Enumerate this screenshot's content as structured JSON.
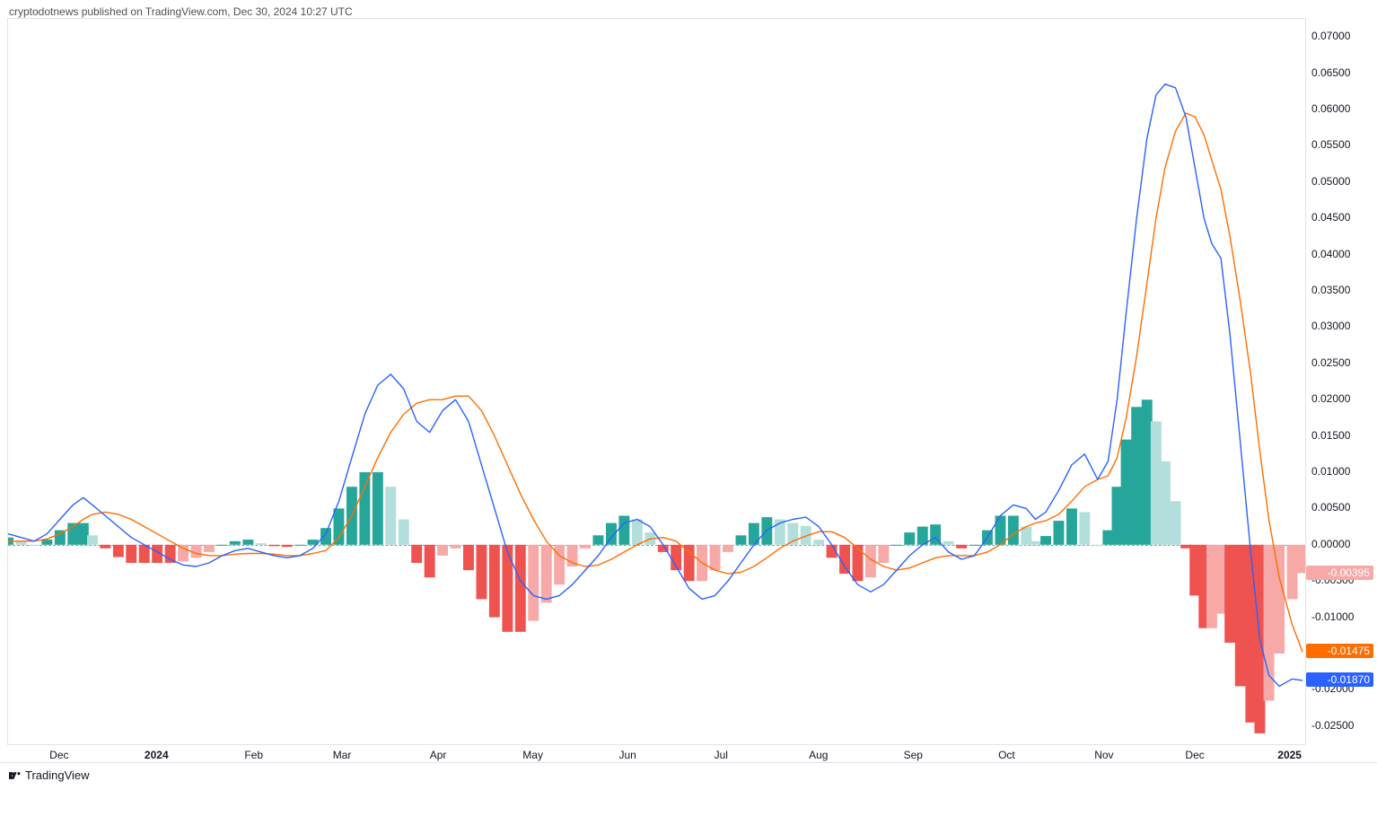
{
  "attribution": "cryptodotnews published on TradingView.com, Dec 30, 2024 10:27 UTC",
  "footer_label": "TradingView",
  "chart": {
    "type": "macd",
    "background_color": "#ffffff",
    "grid_color": "#e0e3eb",
    "zero_line_color": "#9598a1",
    "axis_font_size": 12,
    "axis_font_color": "#131722",
    "ylim": [
      -0.0275,
      0.0725
    ],
    "yticks": [
      0.07,
      0.065,
      0.06,
      0.055,
      0.05,
      0.045,
      0.04,
      0.035,
      0.03,
      0.025,
      0.02,
      0.015,
      0.01,
      0.005,
      0.0,
      -0.005,
      -0.01,
      -0.015,
      -0.02,
      -0.025
    ],
    "ytick_format": "0.00000",
    "current_values": {
      "histogram": {
        "value": -0.00395,
        "color": "#f7a9a7"
      },
      "signal": {
        "value": -0.01475,
        "color": "#ff6d00"
      },
      "macd": {
        "value": -0.0187,
        "color": "#2962ff"
      }
    },
    "xticks": [
      {
        "label": "Dec",
        "pos": 0.04,
        "bold": false
      },
      {
        "label": "2024",
        "pos": 0.115,
        "bold": true
      },
      {
        "label": "Feb",
        "pos": 0.19,
        "bold": false
      },
      {
        "label": "Mar",
        "pos": 0.258,
        "bold": false
      },
      {
        "label": "Apr",
        "pos": 0.332,
        "bold": false
      },
      {
        "label": "May",
        "pos": 0.405,
        "bold": false
      },
      {
        "label": "Jun",
        "pos": 0.478,
        "bold": false
      },
      {
        "label": "Jul",
        "pos": 0.55,
        "bold": false
      },
      {
        "label": "Aug",
        "pos": 0.625,
        "bold": false
      },
      {
        "label": "Sep",
        "pos": 0.698,
        "bold": false
      },
      {
        "label": "Oct",
        "pos": 0.77,
        "bold": false
      },
      {
        "label": "Nov",
        "pos": 0.845,
        "bold": false
      },
      {
        "label": "Dec",
        "pos": 0.915,
        "bold": false
      },
      {
        "label": "2025",
        "pos": 0.988,
        "bold": true
      }
    ],
    "macd_line": {
      "color": "#2962ff",
      "width": 1.4,
      "points": [
        [
          0.0,
          0.0015
        ],
        [
          0.01,
          0.001
        ],
        [
          0.02,
          0.0005
        ],
        [
          0.03,
          0.0015
        ],
        [
          0.04,
          0.0035
        ],
        [
          0.05,
          0.0055
        ],
        [
          0.058,
          0.0065
        ],
        [
          0.065,
          0.0055
        ],
        [
          0.075,
          0.004
        ],
        [
          0.085,
          0.0025
        ],
        [
          0.095,
          0.001
        ],
        [
          0.105,
          0.0
        ],
        [
          0.115,
          -0.001
        ],
        [
          0.125,
          -0.002
        ],
        [
          0.135,
          -0.0028
        ],
        [
          0.145,
          -0.003
        ],
        [
          0.155,
          -0.0025
        ],
        [
          0.165,
          -0.0015
        ],
        [
          0.175,
          -0.0008
        ],
        [
          0.185,
          -0.0005
        ],
        [
          0.195,
          -0.001
        ],
        [
          0.205,
          -0.0015
        ],
        [
          0.215,
          -0.0018
        ],
        [
          0.225,
          -0.0015
        ],
        [
          0.235,
          -0.0005
        ],
        [
          0.245,
          0.0015
        ],
        [
          0.255,
          0.006
        ],
        [
          0.265,
          0.012
        ],
        [
          0.275,
          0.018
        ],
        [
          0.285,
          0.022
        ],
        [
          0.295,
          0.0235
        ],
        [
          0.305,
          0.0215
        ],
        [
          0.315,
          0.017
        ],
        [
          0.325,
          0.0155
        ],
        [
          0.335,
          0.0185
        ],
        [
          0.345,
          0.02
        ],
        [
          0.355,
          0.017
        ],
        [
          0.365,
          0.011
        ],
        [
          0.375,
          0.005
        ],
        [
          0.385,
          -0.001
        ],
        [
          0.395,
          -0.005
        ],
        [
          0.405,
          -0.007
        ],
        [
          0.415,
          -0.0075
        ],
        [
          0.425,
          -0.007
        ],
        [
          0.435,
          -0.0055
        ],
        [
          0.445,
          -0.0035
        ],
        [
          0.455,
          -0.0015
        ],
        [
          0.465,
          0.001
        ],
        [
          0.475,
          0.003
        ],
        [
          0.485,
          0.0035
        ],
        [
          0.495,
          0.0025
        ],
        [
          0.505,
          0.0
        ],
        [
          0.515,
          -0.003
        ],
        [
          0.525,
          -0.006
        ],
        [
          0.535,
          -0.0075
        ],
        [
          0.545,
          -0.007
        ],
        [
          0.555,
          -0.005
        ],
        [
          0.565,
          -0.0025
        ],
        [
          0.575,
          0.0
        ],
        [
          0.585,
          0.002
        ],
        [
          0.595,
          0.003
        ],
        [
          0.605,
          0.0035
        ],
        [
          0.615,
          0.0038
        ],
        [
          0.625,
          0.0025
        ],
        [
          0.635,
          0.0
        ],
        [
          0.645,
          -0.003
        ],
        [
          0.655,
          -0.0055
        ],
        [
          0.665,
          -0.0065
        ],
        [
          0.675,
          -0.0055
        ],
        [
          0.685,
          -0.0035
        ],
        [
          0.695,
          -0.0015
        ],
        [
          0.705,
          0.0
        ],
        [
          0.715,
          0.001
        ],
        [
          0.725,
          -0.001
        ],
        [
          0.735,
          -0.002
        ],
        [
          0.745,
          -0.0015
        ],
        [
          0.755,
          0.001
        ],
        [
          0.765,
          0.004
        ],
        [
          0.775,
          0.0055
        ],
        [
          0.785,
          0.005
        ],
        [
          0.792,
          0.0035
        ],
        [
          0.8,
          0.0045
        ],
        [
          0.81,
          0.0075
        ],
        [
          0.82,
          0.011
        ],
        [
          0.83,
          0.0125
        ],
        [
          0.84,
          0.009
        ],
        [
          0.848,
          0.0115
        ],
        [
          0.855,
          0.02
        ],
        [
          0.862,
          0.032
        ],
        [
          0.87,
          0.045
        ],
        [
          0.878,
          0.056
        ],
        [
          0.885,
          0.062
        ],
        [
          0.892,
          0.0635
        ],
        [
          0.9,
          0.063
        ],
        [
          0.908,
          0.059
        ],
        [
          0.915,
          0.052
        ],
        [
          0.922,
          0.045
        ],
        [
          0.928,
          0.0415
        ],
        [
          0.935,
          0.0395
        ],
        [
          0.942,
          0.029
        ],
        [
          0.95,
          0.014
        ],
        [
          0.958,
          -0.001
        ],
        [
          0.965,
          -0.013
        ],
        [
          0.972,
          -0.018
        ],
        [
          0.98,
          -0.0195
        ],
        [
          0.99,
          -0.0185
        ],
        [
          0.998,
          -0.0187
        ]
      ]
    },
    "signal_line": {
      "color": "#ff6d00",
      "width": 1.4,
      "points": [
        [
          0.0,
          0.0005
        ],
        [
          0.01,
          0.0005
        ],
        [
          0.02,
          0.0005
        ],
        [
          0.03,
          0.0008
        ],
        [
          0.04,
          0.0015
        ],
        [
          0.05,
          0.0025
        ],
        [
          0.058,
          0.0035
        ],
        [
          0.065,
          0.0042
        ],
        [
          0.075,
          0.0045
        ],
        [
          0.085,
          0.0042
        ],
        [
          0.095,
          0.0035
        ],
        [
          0.105,
          0.0025
        ],
        [
          0.115,
          0.0015
        ],
        [
          0.125,
          0.0005
        ],
        [
          0.135,
          -0.0005
        ],
        [
          0.145,
          -0.0012
        ],
        [
          0.155,
          -0.0015
        ],
        [
          0.165,
          -0.0015
        ],
        [
          0.175,
          -0.0013
        ],
        [
          0.185,
          -0.0012
        ],
        [
          0.195,
          -0.0012
        ],
        [
          0.205,
          -0.0013
        ],
        [
          0.215,
          -0.0015
        ],
        [
          0.225,
          -0.0015
        ],
        [
          0.235,
          -0.0012
        ],
        [
          0.245,
          -0.0008
        ],
        [
          0.255,
          0.001
        ],
        [
          0.265,
          0.004
        ],
        [
          0.275,
          0.008
        ],
        [
          0.285,
          0.012
        ],
        [
          0.295,
          0.0155
        ],
        [
          0.305,
          0.018
        ],
        [
          0.315,
          0.0195
        ],
        [
          0.325,
          0.02
        ],
        [
          0.335,
          0.02
        ],
        [
          0.345,
          0.0205
        ],
        [
          0.355,
          0.0205
        ],
        [
          0.365,
          0.0185
        ],
        [
          0.375,
          0.015
        ],
        [
          0.385,
          0.011
        ],
        [
          0.395,
          0.007
        ],
        [
          0.405,
          0.0035
        ],
        [
          0.415,
          0.0005
        ],
        [
          0.425,
          -0.0015
        ],
        [
          0.435,
          -0.0025
        ],
        [
          0.445,
          -0.003
        ],
        [
          0.455,
          -0.0028
        ],
        [
          0.465,
          -0.002
        ],
        [
          0.475,
          -0.001
        ],
        [
          0.485,
          0.0
        ],
        [
          0.495,
          0.0008
        ],
        [
          0.505,
          0.001
        ],
        [
          0.515,
          0.0005
        ],
        [
          0.525,
          -0.001
        ],
        [
          0.535,
          -0.0025
        ],
        [
          0.545,
          -0.0035
        ],
        [
          0.555,
          -0.004
        ],
        [
          0.565,
          -0.0038
        ],
        [
          0.575,
          -0.003
        ],
        [
          0.585,
          -0.0018
        ],
        [
          0.595,
          -0.0005
        ],
        [
          0.605,
          0.0005
        ],
        [
          0.615,
          0.0012
        ],
        [
          0.625,
          0.0018
        ],
        [
          0.635,
          0.0018
        ],
        [
          0.645,
          0.001
        ],
        [
          0.655,
          -0.0005
        ],
        [
          0.665,
          -0.002
        ],
        [
          0.675,
          -0.003
        ],
        [
          0.685,
          -0.0035
        ],
        [
          0.695,
          -0.0032
        ],
        [
          0.705,
          -0.0025
        ],
        [
          0.715,
          -0.0018
        ],
        [
          0.725,
          -0.0015
        ],
        [
          0.735,
          -0.0015
        ],
        [
          0.745,
          -0.0015
        ],
        [
          0.755,
          -0.001
        ],
        [
          0.765,
          0.0
        ],
        [
          0.775,
          0.0015
        ],
        [
          0.785,
          0.0025
        ],
        [
          0.792,
          0.003
        ],
        [
          0.8,
          0.0033
        ],
        [
          0.81,
          0.0042
        ],
        [
          0.82,
          0.006
        ],
        [
          0.83,
          0.008
        ],
        [
          0.84,
          0.009
        ],
        [
          0.848,
          0.0095
        ],
        [
          0.855,
          0.012
        ],
        [
          0.862,
          0.0175
        ],
        [
          0.87,
          0.026
        ],
        [
          0.878,
          0.036
        ],
        [
          0.885,
          0.045
        ],
        [
          0.892,
          0.052
        ],
        [
          0.9,
          0.057
        ],
        [
          0.908,
          0.0595
        ],
        [
          0.915,
          0.059
        ],
        [
          0.922,
          0.0565
        ],
        [
          0.928,
          0.053
        ],
        [
          0.935,
          0.049
        ],
        [
          0.942,
          0.0425
        ],
        [
          0.95,
          0.0335
        ],
        [
          0.958,
          0.0235
        ],
        [
          0.965,
          0.013
        ],
        [
          0.972,
          0.0035
        ],
        [
          0.98,
          -0.0045
        ],
        [
          0.99,
          -0.011
        ],
        [
          0.998,
          -0.0148
        ]
      ]
    },
    "histogram": {
      "colors": {
        "pos_strong": "#26a69a",
        "pos_weak": "#b2dfdb",
        "neg_strong": "#ef5350",
        "neg_weak": "#f7a9a7"
      },
      "bar_gap": 0.12
    }
  }
}
